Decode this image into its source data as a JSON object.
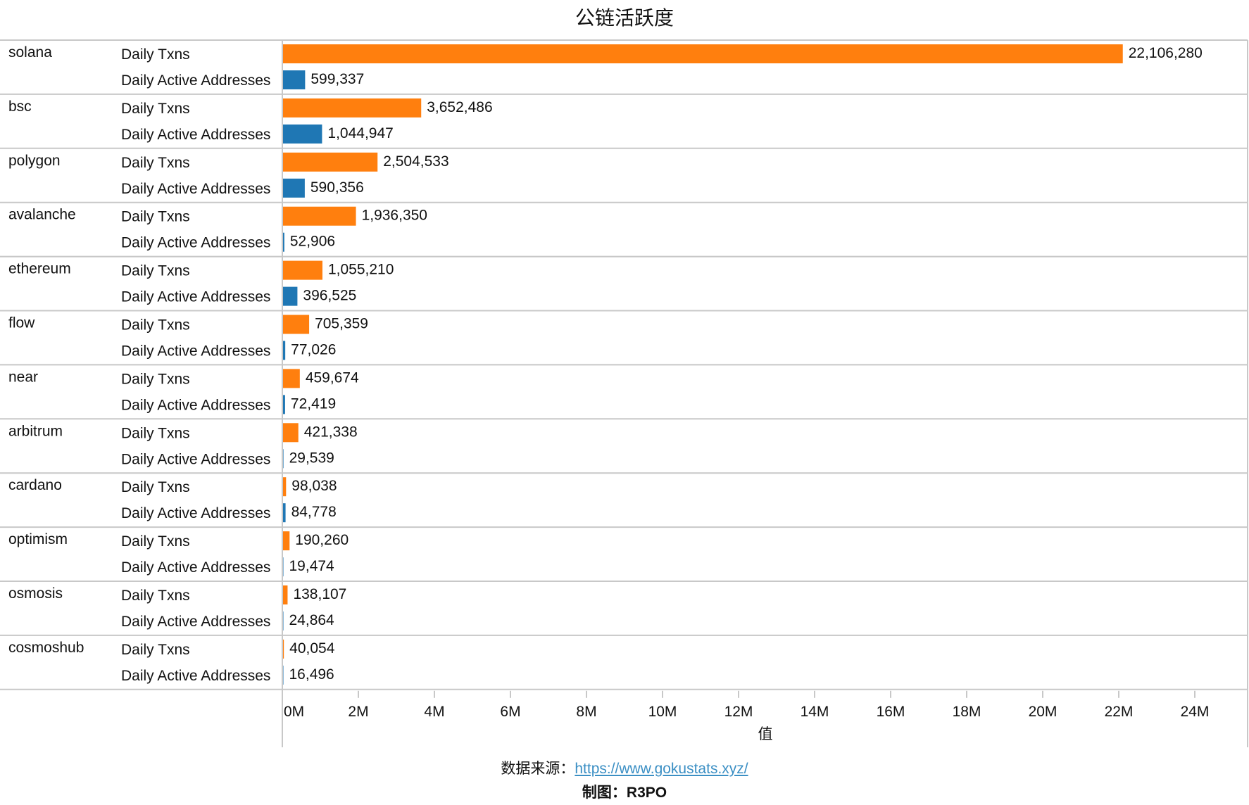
{
  "chart_data": {
    "type": "bar",
    "orientation": "horizontal",
    "title": "公链活跃度",
    "xlabel": "值",
    "xlim": [
      0,
      25000000
    ],
    "ticks": [
      0,
      2000000,
      4000000,
      6000000,
      8000000,
      10000000,
      12000000,
      14000000,
      16000000,
      18000000,
      20000000,
      22000000,
      24000000
    ],
    "tick_labels": [
      "0M",
      "2M",
      "4M",
      "6M",
      "8M",
      "10M",
      "12M",
      "14M",
      "16M",
      "18M",
      "20M",
      "22M",
      "24M"
    ],
    "measures": [
      "Daily Txns",
      "Daily Active Addresses"
    ],
    "colors": {
      "Daily Txns": "#ff7f0e",
      "Daily Active Addresses": "#1f77b4"
    },
    "grid": false,
    "groups": [
      {
        "name": "solana",
        "values": [
          22106280,
          599337
        ],
        "labels": [
          "22,106,280",
          "599,337"
        ]
      },
      {
        "name": "bsc",
        "values": [
          3652486,
          1044947
        ],
        "labels": [
          "3,652,486",
          "1,044,947"
        ]
      },
      {
        "name": "polygon",
        "values": [
          2504533,
          590356
        ],
        "labels": [
          "2,504,533",
          "590,356"
        ]
      },
      {
        "name": "avalanche",
        "values": [
          1936350,
          52906
        ],
        "labels": [
          "1,936,350",
          "52,906"
        ]
      },
      {
        "name": "ethereum",
        "values": [
          1055210,
          396525
        ],
        "labels": [
          "1,055,210",
          "396,525"
        ]
      },
      {
        "name": "flow",
        "values": [
          705359,
          77026
        ],
        "labels": [
          "705,359",
          "77,026"
        ]
      },
      {
        "name": "near",
        "values": [
          459674,
          72419
        ],
        "labels": [
          "459,674",
          "72,419"
        ]
      },
      {
        "name": "arbitrum",
        "values": [
          421338,
          29539
        ],
        "labels": [
          "421,338",
          "29,539"
        ]
      },
      {
        "name": "cardano",
        "values": [
          98038,
          84778
        ],
        "labels": [
          "98,038",
          "84,778"
        ]
      },
      {
        "name": "optimism",
        "values": [
          190260,
          19474
        ],
        "labels": [
          "190,260",
          "19,474"
        ]
      },
      {
        "name": "osmosis",
        "values": [
          138107,
          24864
        ],
        "labels": [
          "138,107",
          "24,864"
        ]
      },
      {
        "name": "cosmoshub",
        "values": [
          40054,
          16496
        ],
        "labels": [
          "40,054",
          "16,496"
        ]
      }
    ]
  },
  "footer": {
    "source_label": "数据来源：",
    "source_url": "https://www.gokustats.xyz/",
    "credit": "制图：R3PO"
  }
}
